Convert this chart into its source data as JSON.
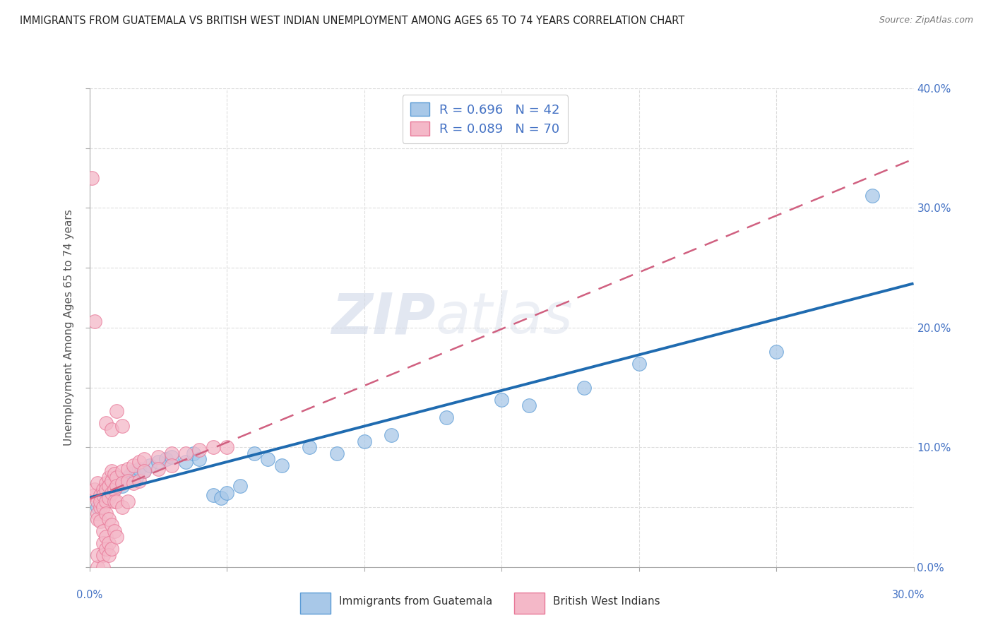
{
  "title": "IMMIGRANTS FROM GUATEMALA VS BRITISH WEST INDIAN UNEMPLOYMENT AMONG AGES 65 TO 74 YEARS CORRELATION CHART",
  "source": "Source: ZipAtlas.com",
  "ylabel": "Unemployment Among Ages 65 to 74 years",
  "watermark_zip": "ZIP",
  "watermark_atlas": "atlas",
  "legend_r1": "R = 0.696",
  "legend_n1": "N = 42",
  "legend_r2": "R = 0.089",
  "legend_n2": "N = 70",
  "color_blue_fill": "#a8c8e8",
  "color_blue_edge": "#5b9bd5",
  "color_pink_fill": "#f4b8c8",
  "color_pink_edge": "#e87898",
  "color_line_blue": "#1f6bb0",
  "color_line_pink": "#d06080",
  "color_tick_label": "#4472c4",
  "xlim": [
    0.0,
    0.3
  ],
  "ylim": [
    0.0,
    0.4
  ],
  "x_right_ticks": [
    0.0,
    0.05,
    0.1,
    0.15,
    0.2,
    0.25,
    0.3
  ],
  "y_right_ticks": [
    0.0,
    0.05,
    0.1,
    0.15,
    0.2,
    0.25,
    0.3,
    0.35,
    0.4
  ],
  "guatemala_scatter": [
    [
      0.003,
      0.05
    ],
    [
      0.004,
      0.06
    ],
    [
      0.005,
      0.055
    ],
    [
      0.006,
      0.065
    ],
    [
      0.007,
      0.06
    ],
    [
      0.008,
      0.07
    ],
    [
      0.009,
      0.065
    ],
    [
      0.01,
      0.075
    ],
    [
      0.011,
      0.07
    ],
    [
      0.012,
      0.068
    ],
    [
      0.013,
      0.072
    ],
    [
      0.014,
      0.075
    ],
    [
      0.015,
      0.078
    ],
    [
      0.016,
      0.08
    ],
    [
      0.017,
      0.075
    ],
    [
      0.018,
      0.082
    ],
    [
      0.02,
      0.08
    ],
    [
      0.022,
      0.085
    ],
    [
      0.025,
      0.088
    ],
    [
      0.028,
      0.09
    ],
    [
      0.03,
      0.092
    ],
    [
      0.035,
      0.088
    ],
    [
      0.038,
      0.095
    ],
    [
      0.04,
      0.09
    ],
    [
      0.045,
      0.06
    ],
    [
      0.048,
      0.058
    ],
    [
      0.05,
      0.062
    ],
    [
      0.055,
      0.068
    ],
    [
      0.06,
      0.095
    ],
    [
      0.065,
      0.09
    ],
    [
      0.07,
      0.085
    ],
    [
      0.08,
      0.1
    ],
    [
      0.09,
      0.095
    ],
    [
      0.1,
      0.105
    ],
    [
      0.11,
      0.11
    ],
    [
      0.13,
      0.125
    ],
    [
      0.15,
      0.14
    ],
    [
      0.16,
      0.135
    ],
    [
      0.18,
      0.15
    ],
    [
      0.2,
      0.17
    ],
    [
      0.25,
      0.18
    ],
    [
      0.285,
      0.31
    ]
  ],
  "bwi_scatter": [
    [
      0.001,
      0.325
    ],
    [
      0.002,
      0.205
    ],
    [
      0.002,
      0.06
    ],
    [
      0.002,
      0.065
    ],
    [
      0.003,
      0.07
    ],
    [
      0.003,
      0.055
    ],
    [
      0.003,
      0.045
    ],
    [
      0.003,
      0.04
    ],
    [
      0.003,
      0.0
    ],
    [
      0.003,
      0.01
    ],
    [
      0.004,
      0.05
    ],
    [
      0.004,
      0.06
    ],
    [
      0.004,
      0.055
    ],
    [
      0.004,
      0.038
    ],
    [
      0.005,
      0.065
    ],
    [
      0.005,
      0.06
    ],
    [
      0.005,
      0.05
    ],
    [
      0.005,
      0.03
    ],
    [
      0.005,
      0.02
    ],
    [
      0.005,
      0.01
    ],
    [
      0.005,
      0.0
    ],
    [
      0.006,
      0.07
    ],
    [
      0.006,
      0.065
    ],
    [
      0.006,
      0.055
    ],
    [
      0.006,
      0.045
    ],
    [
      0.006,
      0.025
    ],
    [
      0.006,
      0.015
    ],
    [
      0.007,
      0.075
    ],
    [
      0.007,
      0.068
    ],
    [
      0.007,
      0.058
    ],
    [
      0.007,
      0.04
    ],
    [
      0.007,
      0.02
    ],
    [
      0.007,
      0.01
    ],
    [
      0.008,
      0.08
    ],
    [
      0.008,
      0.072
    ],
    [
      0.008,
      0.062
    ],
    [
      0.008,
      0.035
    ],
    [
      0.008,
      0.015
    ],
    [
      0.009,
      0.078
    ],
    [
      0.009,
      0.065
    ],
    [
      0.009,
      0.055
    ],
    [
      0.009,
      0.03
    ],
    [
      0.01,
      0.075
    ],
    [
      0.01,
      0.068
    ],
    [
      0.01,
      0.055
    ],
    [
      0.01,
      0.025
    ],
    [
      0.012,
      0.08
    ],
    [
      0.012,
      0.07
    ],
    [
      0.012,
      0.05
    ],
    [
      0.014,
      0.082
    ],
    [
      0.014,
      0.072
    ],
    [
      0.014,
      0.055
    ],
    [
      0.016,
      0.085
    ],
    [
      0.016,
      0.07
    ],
    [
      0.018,
      0.088
    ],
    [
      0.018,
      0.072
    ],
    [
      0.02,
      0.09
    ],
    [
      0.02,
      0.08
    ],
    [
      0.025,
      0.092
    ],
    [
      0.025,
      0.082
    ],
    [
      0.03,
      0.095
    ],
    [
      0.03,
      0.085
    ],
    [
      0.035,
      0.095
    ],
    [
      0.04,
      0.098
    ],
    [
      0.045,
      0.1
    ],
    [
      0.05,
      0.1
    ],
    [
      0.006,
      0.12
    ],
    [
      0.008,
      0.115
    ],
    [
      0.012,
      0.118
    ],
    [
      0.01,
      0.13
    ]
  ]
}
